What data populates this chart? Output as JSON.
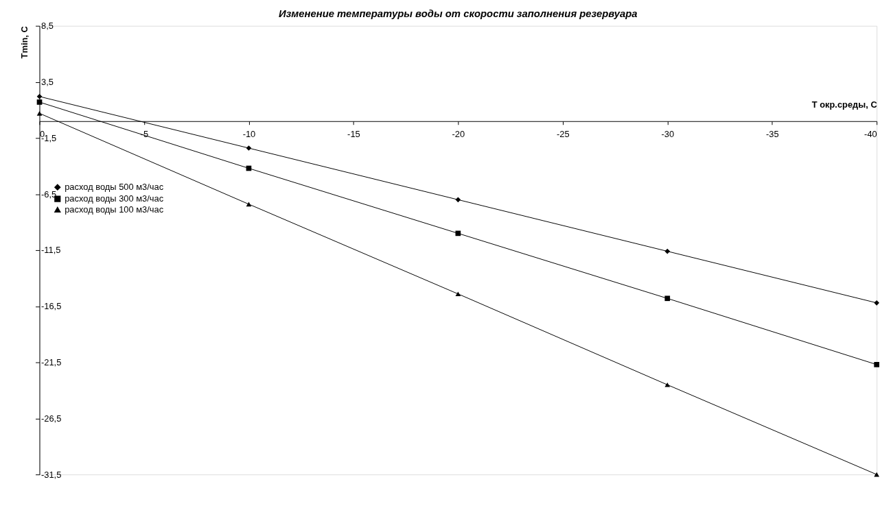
{
  "chart_data": {
    "type": "line",
    "title": "Изменение  температуры воды от скорости заполнения резервуара",
    "xlabel": "T окр.среды, С",
    "ylabel": "Tmin, C",
    "x": [
      0,
      -10,
      -20,
      -30,
      -40
    ],
    "series": [
      {
        "name": "расход воды 500 м3/час",
        "color": "#000000",
        "marker": "diamond",
        "values": [
          2.2,
          -2.4,
          -7.0,
          -11.6,
          -16.2
        ]
      },
      {
        "name": "расход воды 300 м3/час",
        "color": "#000000",
        "marker": "square",
        "values": [
          1.7,
          -4.2,
          -10.0,
          -15.8,
          -21.7
        ]
      },
      {
        "name": "расход воды 100 м3/час",
        "color": "#000000",
        "marker": "triangle",
        "values": [
          0.7,
          -7.4,
          -15.4,
          -23.5,
          -31.5
        ]
      }
    ],
    "xlim": [
      0,
      -40
    ],
    "xticks": [
      0,
      -5,
      -10,
      -15,
      -20,
      -25,
      -30,
      -35,
      -40
    ],
    "ylim": [
      -31.5,
      8.5
    ],
    "yticks": [
      {
        "value": 8.5,
        "label": "8,5"
      },
      {
        "value": 3.5,
        "label": "3,5"
      },
      {
        "value": -1.5,
        "label": "-1,5"
      },
      {
        "value": -6.5,
        "label": "-6,5"
      },
      {
        "value": -11.5,
        "label": "-11,5"
      },
      {
        "value": -16.5,
        "label": "-16,5"
      },
      {
        "value": -21.5,
        "label": "-21,5"
      },
      {
        "value": -26.5,
        "label": "-26,5"
      },
      {
        "value": -31.5,
        "label": "-31,5"
      }
    ],
    "grid": false,
    "legend": "left",
    "line_style": "solid"
  }
}
